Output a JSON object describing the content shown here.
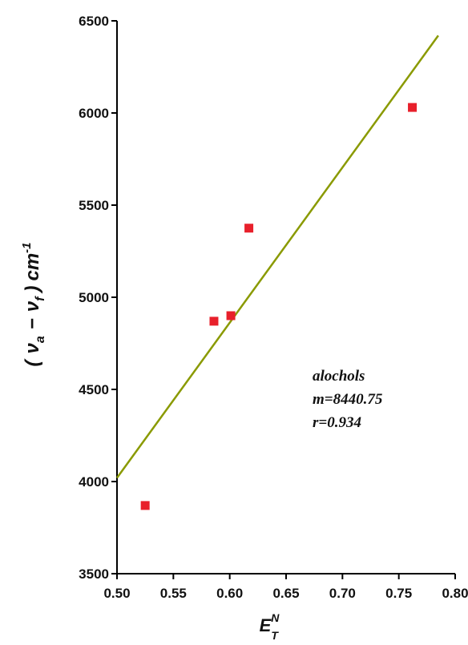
{
  "chart_data": {
    "type": "scatter",
    "xlim": [
      0.5,
      0.8
    ],
    "ylim": [
      3500,
      6500
    ],
    "x_ticks": [
      "0.50",
      "0.55",
      "0.60",
      "0.65",
      "0.70",
      "0.75",
      "0.80"
    ],
    "y_ticks": [
      "3500",
      "4000",
      "4500",
      "5000",
      "5500",
      "6000",
      "6500"
    ],
    "xlabel": {
      "main": "E",
      "sup": "N",
      "sub": "T"
    },
    "ylabel": {
      "open": "(",
      "va": "ν",
      "va_sub": "a",
      "minus": "−",
      "vf": "ν",
      "vf_sub": "f",
      "close": ")",
      "unit": "cm",
      "unit_sup": "-1"
    },
    "points": [
      {
        "x": 0.525,
        "y": 3870
      },
      {
        "x": 0.586,
        "y": 4870
      },
      {
        "x": 0.601,
        "y": 4900
      },
      {
        "x": 0.617,
        "y": 5375
      },
      {
        "x": 0.762,
        "y": 6030
      }
    ],
    "fit_line": {
      "x": [
        0.5,
        0.785
      ],
      "y": [
        4020,
        6420
      ]
    },
    "annotation": [
      "alochols",
      "m=8440.75",
      "r=0.934"
    ],
    "colors": {
      "points": "#e8202b",
      "line": "#8a9a00",
      "axes": "#000000"
    },
    "grid": false
  }
}
